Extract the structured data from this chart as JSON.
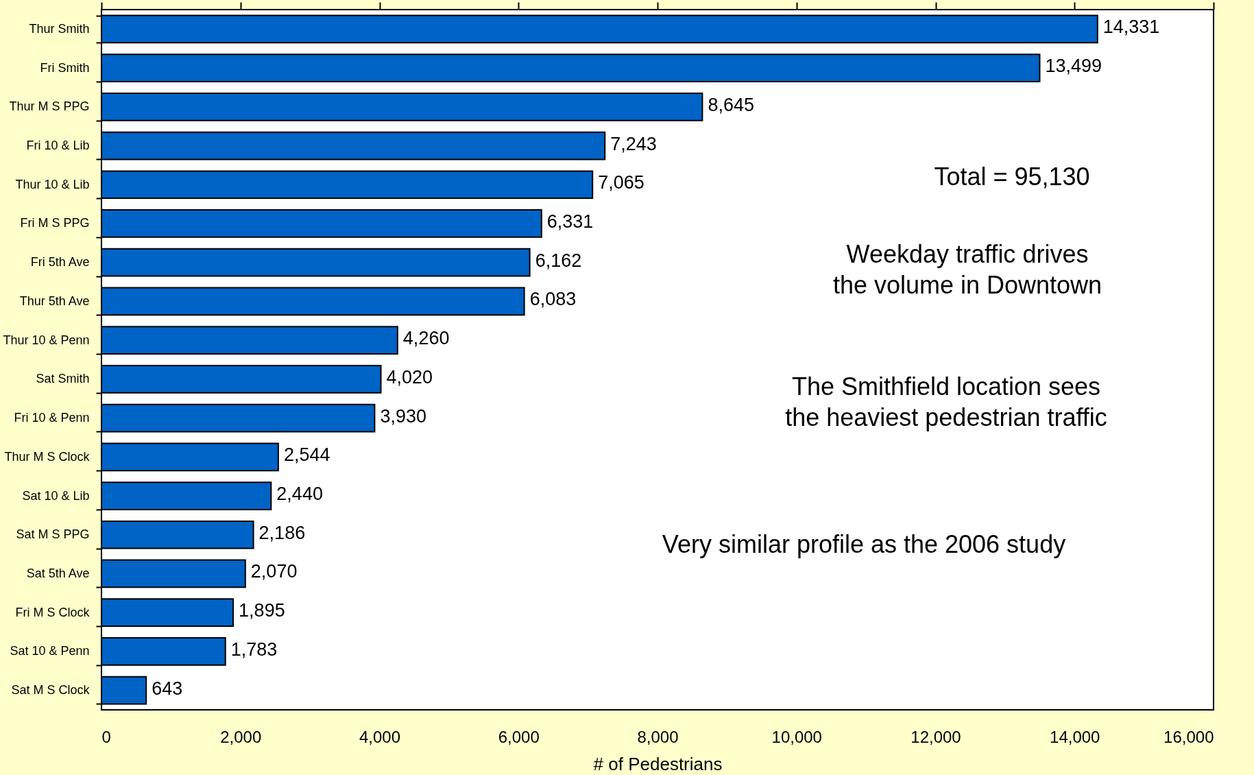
{
  "chart_data": {
    "type": "bar",
    "orientation": "horizontal",
    "categories": [
      "Thur Smith",
      "Fri Smith",
      "Thur M S PPG",
      "Fri 10 & Lib",
      "Thur 10 & Lib",
      "Fri M S PPG",
      "Fri 5th Ave",
      "Thur 5th Ave",
      "Thur 10 & Penn",
      "Sat Smith",
      "Fri 10 & Penn",
      "Thur M S Clock",
      "Sat 10 & Lib",
      "Sat M S PPG",
      "Sat 5th Ave",
      "Fri M S Clock",
      "Sat 10 & Penn",
      "Sat M S Clock"
    ],
    "values": [
      14331,
      13499,
      8645,
      7243,
      7065,
      6331,
      6162,
      6083,
      4260,
      4020,
      3930,
      2544,
      2440,
      2186,
      2070,
      1895,
      1783,
      643
    ],
    "value_labels": [
      "14,331",
      "13,499",
      "8,645",
      "7,243",
      "7,065",
      "6,331",
      "6,162",
      "6,083",
      "4,260",
      "4,020",
      "3,930",
      "2,544",
      "2,440",
      "2,186",
      "2,070",
      "1,895",
      "1,783",
      "643"
    ],
    "color": "#0063c6",
    "xlim": [
      0,
      16000
    ],
    "xticks": [
      0,
      {
        "value": 2000,
        "label": "2,000"
      },
      {
        "value": 4000,
        "label": "4,000"
      },
      {
        "value": 6000,
        "label": "6,000"
      },
      {
        "value": 8000,
        "label": "8,000"
      },
      {
        "value": 10000,
        "label": "10,000"
      },
      {
        "value": 12000,
        "label": "12,000"
      },
      {
        "value": 14000,
        "label": "14,000"
      },
      {
        "value": 16000,
        "label": "16,000"
      }
    ],
    "xlabel": "# of Pedestrians",
    "annotations": [
      "Total = 95,130",
      "Weekday traffic drives\nthe volume in Downtown",
      "The Smithfield location sees\nthe heaviest pedestrian traffic",
      "Very similar profile as the 2006 study"
    ]
  }
}
